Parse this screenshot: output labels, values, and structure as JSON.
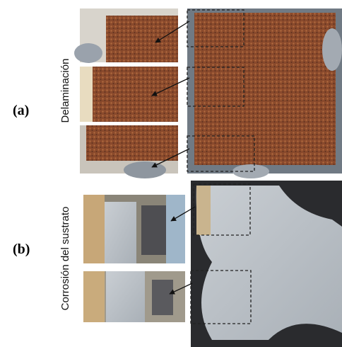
{
  "panel_a": {
    "label": "(a)",
    "caption": "Delaminación"
  },
  "panel_b": {
    "label": "(b)",
    "caption": "Corrosión del sustrato"
  }
}
